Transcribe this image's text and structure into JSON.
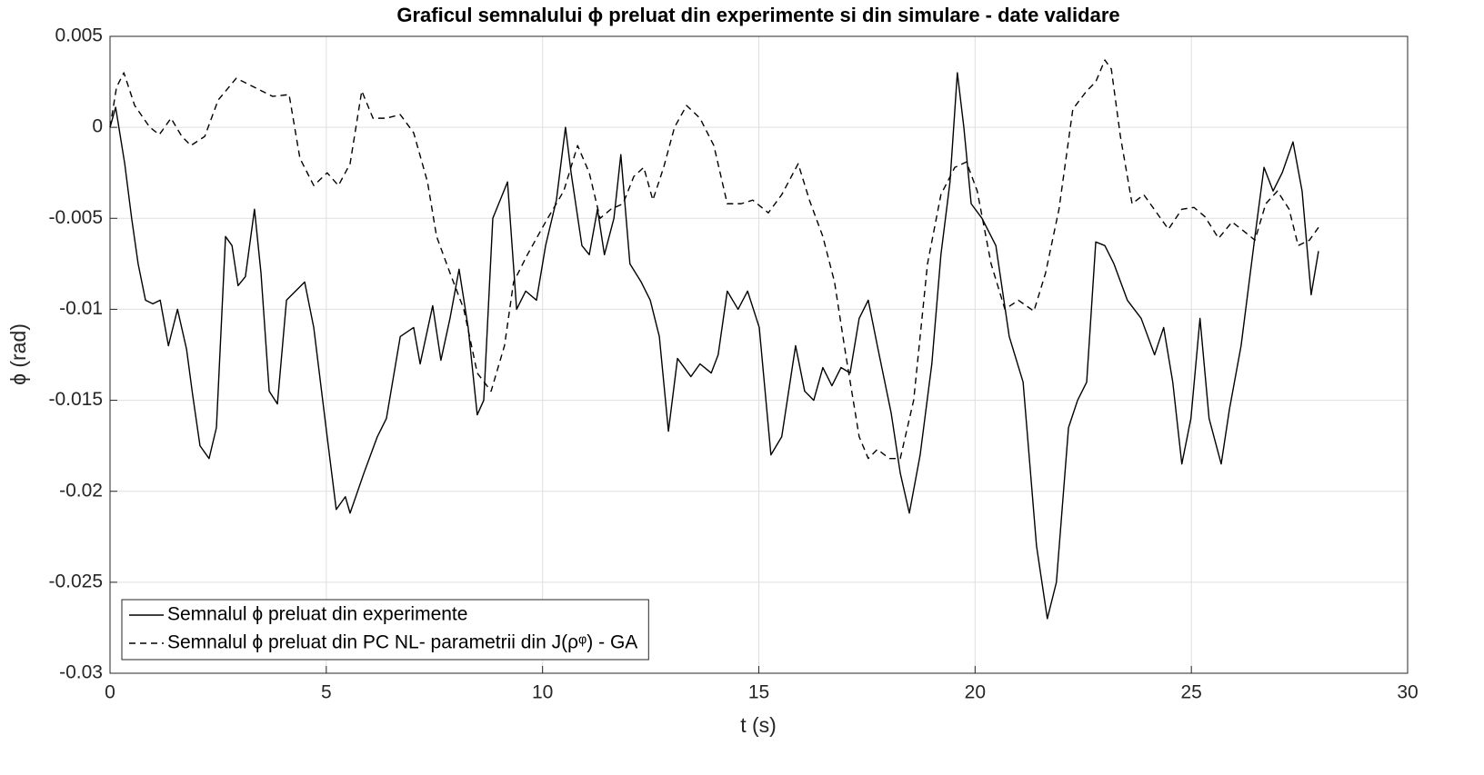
{
  "chart_data": {
    "type": "line",
    "title": "Graficul semnalului ϕ preluat din experimente si din simulare - date validare",
    "xlabel": "t (s)",
    "ylabel": "ϕ (rad)",
    "xlim": [
      0,
      30
    ],
    "xticks": [
      0,
      5,
      10,
      15,
      20,
      25,
      30
    ],
    "ylim": [
      -0.03,
      0.005
    ],
    "yticks": [
      -0.03,
      -0.025,
      -0.02,
      -0.015,
      -0.01,
      -0.005,
      0,
      0.005
    ],
    "grid": true,
    "legend": "lower left",
    "series": [
      {
        "name": "Semnalul ϕ preluat din experimente",
        "color": "#000000",
        "dash": "solid",
        "x": [
          0,
          0.13,
          0.34,
          0.5,
          0.65,
          0.82,
          0.99,
          1.16,
          1.35,
          1.56,
          1.77,
          1.91,
          2.08,
          2.29,
          2.46,
          2.67,
          2.82,
          2.96,
          3.13,
          3.34,
          3.49,
          3.68,
          3.87,
          4.08,
          4.5,
          4.71,
          5.02,
          5.23,
          5.44,
          5.55,
          5.87,
          6.18,
          6.39,
          6.71,
          7.02,
          7.17,
          7.46,
          7.65,
          7.86,
          8.07,
          8.28,
          8.49,
          8.64,
          8.85,
          9.19,
          9.4,
          9.61,
          9.86,
          10.07,
          10.32,
          10.53,
          10.66,
          10.91,
          11.08,
          11.27,
          11.43,
          11.65,
          11.81,
          12.02,
          12.28,
          12.49,
          12.7,
          12.91,
          13.12,
          13.43,
          13.64,
          13.9,
          14.06,
          14.27,
          14.52,
          14.74,
          15.01,
          15.28,
          15.53,
          15.85,
          16.06,
          16.27,
          16.48,
          16.69,
          16.9,
          17.11,
          17.32,
          17.53,
          17.74,
          18.06,
          18.27,
          18.48,
          18.73,
          19.0,
          19.21,
          19.42,
          19.59,
          19.74,
          19.91,
          20.16,
          20.48,
          20.79,
          21.11,
          21.42,
          21.67,
          21.88,
          22.16,
          22.37,
          22.58,
          22.79,
          23.0,
          23.21,
          23.52,
          23.84,
          24.15,
          24.36,
          24.57,
          24.78,
          24.99,
          25.2,
          25.41,
          25.69,
          25.88,
          26.15,
          26.47,
          26.68,
          26.89,
          27.1,
          27.35,
          27.56,
          27.77,
          27.94
        ],
        "values": [
          0,
          0.0011,
          -0.002,
          -0.005,
          -0.0075,
          -0.0095,
          -0.0097,
          -0.0095,
          -0.012,
          -0.01,
          -0.0122,
          -0.0147,
          -0.0175,
          -0.0182,
          -0.0165,
          -0.006,
          -0.0065,
          -0.0087,
          -0.0082,
          -0.0045,
          -0.008,
          -0.0145,
          -0.0152,
          -0.0095,
          -0.0085,
          -0.011,
          -0.017,
          -0.021,
          -0.0203,
          -0.0212,
          -0.019,
          -0.017,
          -0.016,
          -0.0115,
          -0.011,
          -0.013,
          -0.0098,
          -0.0128,
          -0.0105,
          -0.0078,
          -0.011,
          -0.0158,
          -0.015,
          -0.005,
          -0.003,
          -0.01,
          -0.009,
          -0.0095,
          -0.0065,
          -0.004,
          0,
          -0.0025,
          -0.0065,
          -0.007,
          -0.0045,
          -0.007,
          -0.005,
          -0.0015,
          -0.0075,
          -0.0085,
          -0.0095,
          -0.0115,
          -0.0167,
          -0.0127,
          -0.0137,
          -0.013,
          -0.0135,
          -0.0125,
          -0.009,
          -0.01,
          -0.009,
          -0.011,
          -0.018,
          -0.017,
          -0.012,
          -0.0145,
          -0.015,
          -0.0132,
          -0.0142,
          -0.0132,
          -0.0135,
          -0.0105,
          -0.0095,
          -0.012,
          -0.0157,
          -0.019,
          -0.0212,
          -0.018,
          -0.013,
          -0.007,
          -0.003,
          0.003,
          0,
          -0.0042,
          -0.005,
          -0.0065,
          -0.0115,
          -0.014,
          -0.023,
          -0.027,
          -0.025,
          -0.0165,
          -0.015,
          -0.014,
          -0.0063,
          -0.0065,
          -0.0075,
          -0.0095,
          -0.0105,
          -0.0125,
          -0.011,
          -0.014,
          -0.0185,
          -0.016,
          -0.0105,
          -0.016,
          -0.0185,
          -0.0155,
          -0.012,
          -0.006,
          -0.0022,
          -0.0035,
          -0.0025,
          -0.0008,
          -0.0035,
          -0.0092,
          -0.0068
        ]
      },
      {
        "name": "Semnalul ϕ preluat din PC NL- parametrii din J(ρᵠ) - GA",
        "color": "#000000",
        "dash": "dashed",
        "x": [
          0,
          0.15,
          0.32,
          0.57,
          0.92,
          1.14,
          1.41,
          1.66,
          1.87,
          2.19,
          2.5,
          2.92,
          3.34,
          3.76,
          4.14,
          4.39,
          4.71,
          5.02,
          5.28,
          5.55,
          5.82,
          6.08,
          6.39,
          6.71,
          7.02,
          7.34,
          7.55,
          7.86,
          8.18,
          8.49,
          8.81,
          9.12,
          9.33,
          9.65,
          10.07,
          10.49,
          10.81,
          11.08,
          11.33,
          11.58,
          11.86,
          12.11,
          12.34,
          12.55,
          12.8,
          13.05,
          13.33,
          13.64,
          13.96,
          14.27,
          14.59,
          14.86,
          15.22,
          15.53,
          15.91,
          16.17,
          16.48,
          16.75,
          17.01,
          17.32,
          17.53,
          17.74,
          18.02,
          18.27,
          18.58,
          18.9,
          19.21,
          19.53,
          19.8,
          20.05,
          20.37,
          20.69,
          21.0,
          21.36,
          21.63,
          21.94,
          22.26,
          22.58,
          22.79,
          23.0,
          23.15,
          23.36,
          23.63,
          23.9,
          24.2,
          24.47,
          24.78,
          25.06,
          25.31,
          25.63,
          25.94,
          26.21,
          26.47,
          26.72,
          26.99,
          27.26,
          27.47,
          27.73,
          27.94
        ],
        "values": [
          0,
          0.0022,
          0.003,
          0.0012,
          0,
          -0.0004,
          0.0005,
          -0.0005,
          -0.001,
          -0.0005,
          0.0015,
          0.0027,
          0.0022,
          0.0017,
          0.0018,
          -0.0017,
          -0.0032,
          -0.0025,
          -0.0032,
          -0.002,
          0.002,
          0.0005,
          0.0005,
          0.0007,
          -0.0003,
          -0.003,
          -0.006,
          -0.008,
          -0.01,
          -0.0135,
          -0.0145,
          -0.012,
          -0.0085,
          -0.007,
          -0.0052,
          -0.0035,
          -0.001,
          -0.0025,
          -0.005,
          -0.0045,
          -0.0042,
          -0.0027,
          -0.0022,
          -0.004,
          -0.0022,
          0,
          0.0012,
          0.0005,
          -0.001,
          -0.0042,
          -0.0042,
          -0.004,
          -0.0047,
          -0.0037,
          -0.002,
          -0.004,
          -0.006,
          -0.0085,
          -0.0125,
          -0.017,
          -0.0182,
          -0.0177,
          -0.0182,
          -0.0182,
          -0.015,
          -0.0075,
          -0.0037,
          -0.0022,
          -0.0019,
          -0.0035,
          -0.0075,
          -0.01,
          -0.0095,
          -0.0101,
          -0.008,
          -0.0045,
          0.001,
          0.002,
          0.0025,
          0.0037,
          0.0032,
          -0.0005,
          -0.0042,
          -0.0037,
          -0.0047,
          -0.0056,
          -0.0045,
          -0.0044,
          -0.0049,
          -0.0061,
          -0.0052,
          -0.0057,
          -0.0062,
          -0.0042,
          -0.0035,
          -0.0045,
          -0.0065,
          -0.0062,
          -0.0055
        ]
      }
    ]
  }
}
